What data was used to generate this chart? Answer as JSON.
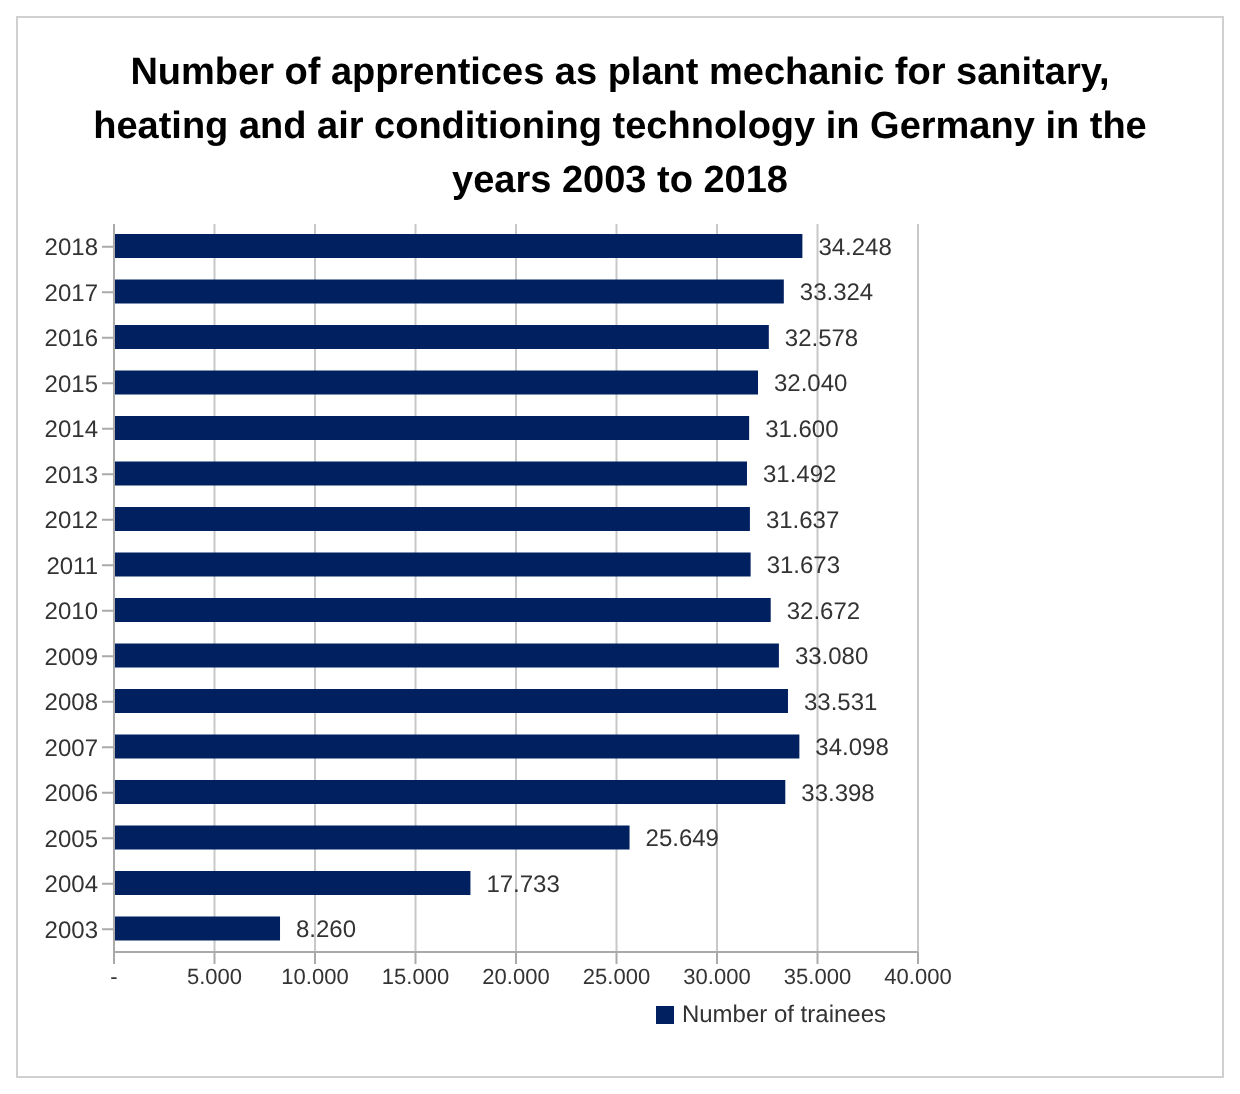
{
  "chart_data": {
    "type": "bar",
    "orientation": "horizontal",
    "title": "Number of apprentices as plant mechanic for sanitary, heating and air conditioning technology in Germany in the years 2003 to 2018",
    "categories": [
      "2018",
      "2017",
      "2016",
      "2015",
      "2014",
      "2013",
      "2012",
      "2011",
      "2010",
      "2009",
      "2008",
      "2007",
      "2006",
      "2005",
      "2004",
      "2003"
    ],
    "series": [
      {
        "name": "Number of trainees",
        "color": "#002060",
        "values": [
          34248,
          33324,
          32578,
          32040,
          31600,
          31492,
          31637,
          31673,
          32672,
          33080,
          33531,
          34098,
          33398,
          25649,
          17733,
          8260
        ],
        "value_labels": [
          "34.248",
          "33.324",
          "32.578",
          "32.040",
          "31.600",
          "31.492",
          "31.637",
          "31.673",
          "32.672",
          "33.080",
          "33.531",
          "34.098",
          "33.398",
          "25.649",
          "17.733",
          "8.260"
        ]
      }
    ],
    "xlim": [
      0,
      40000
    ],
    "xticks": [
      {
        "value": 0,
        "label": "-"
      },
      {
        "value": 5000,
        "label": "5.000"
      },
      {
        "value": 10000,
        "label": "10.000"
      },
      {
        "value": 15000,
        "label": "15.000"
      },
      {
        "value": 20000,
        "label": "20.000"
      },
      {
        "value": 25000,
        "label": "25.000"
      },
      {
        "value": 30000,
        "label": "30.000"
      },
      {
        "value": 35000,
        "label": "35.000"
      },
      {
        "value": 40000,
        "label": "40.000"
      }
    ],
    "grid": "x",
    "legend": "bottom right"
  }
}
